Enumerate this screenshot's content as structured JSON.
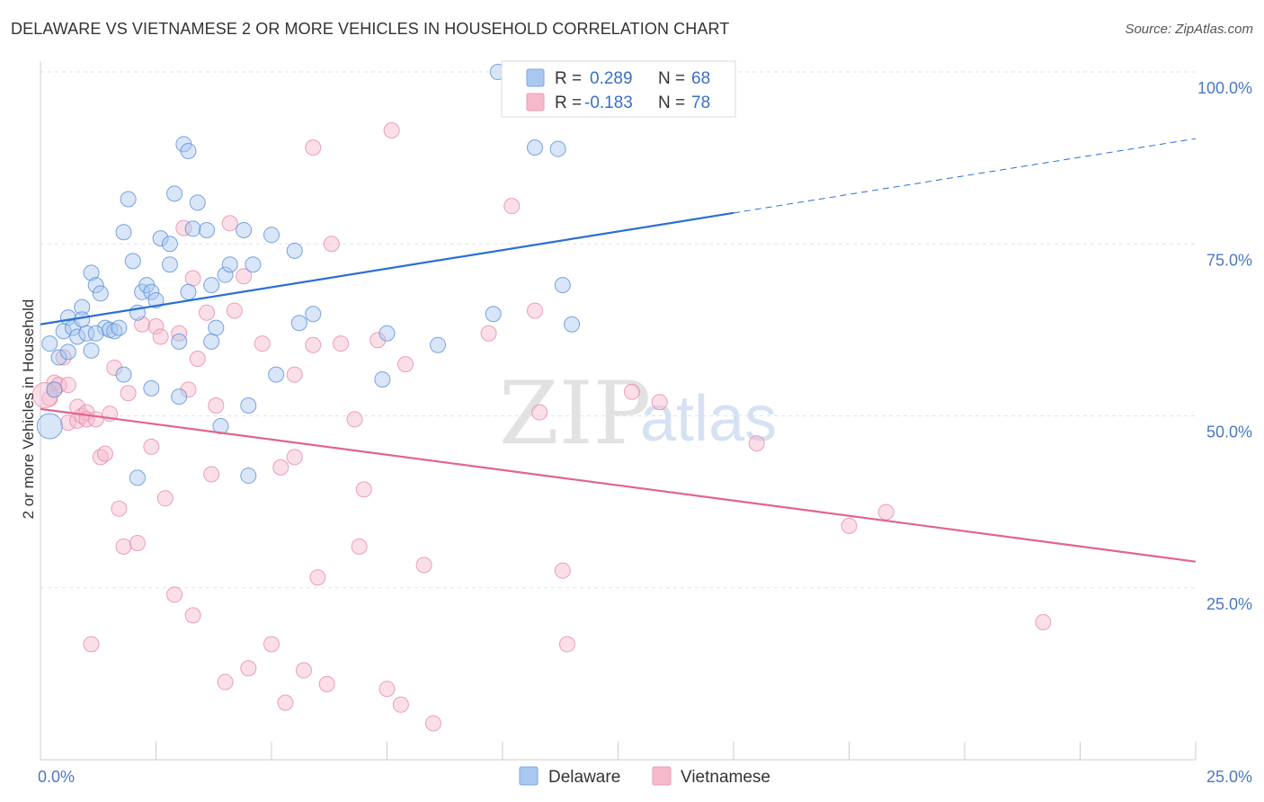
{
  "header": {
    "title": "DELAWARE VS VIETNAMESE 2 OR MORE VEHICLES IN HOUSEHOLD CORRELATION CHART",
    "source": "Source: ZipAtlas.com"
  },
  "watermark": {
    "zip": "ZIP",
    "atlas": "atlas"
  },
  "legend": {
    "r_label": "R =",
    "n_label": "N =",
    "entries": [
      {
        "r": "0.289",
        "n": "68",
        "color": "#a9c8f0"
      },
      {
        "r": "-0.183",
        "n": "78",
        "color": "#f6b9cc"
      }
    ]
  },
  "colors": {
    "delaware": "#5b8fd8",
    "vietnamese": "#e88aa8",
    "delaware_line": "#2a6fd0",
    "vietnamese_line": "#e0648f",
    "tick": "#4a78c4"
  },
  "chart_data": {
    "type": "scatter",
    "xlabel": "",
    "ylabel": "2 or more Vehicles in Household",
    "xlim": [
      0,
      25
    ],
    "ylim": [
      0,
      100
    ],
    "x_tick_labels": [
      "0.0%",
      "25.0%"
    ],
    "y_tick_labels": [
      "100.0%",
      "75.0%",
      "50.0%",
      "25.0%"
    ],
    "y_tick_values": [
      100,
      75,
      50,
      25
    ],
    "legend_placement": "top-center",
    "grid": true,
    "series": [
      {
        "name": "Delaware",
        "trend": {
          "x0": 0,
          "y0": 63.3,
          "x1": 15.0,
          "y1": 79.5,
          "dash_to_x": 25.0,
          "dash_to_y": 90.3
        },
        "points": [
          [
            9.9,
            100.0
          ],
          [
            0.2,
            60.5
          ],
          [
            0.4,
            58.5
          ],
          [
            0.5,
            62.3
          ],
          [
            0.6,
            64.3
          ],
          [
            0.6,
            59.3
          ],
          [
            0.7,
            62.8
          ],
          [
            0.8,
            61.5
          ],
          [
            0.9,
            65.8
          ],
          [
            0.9,
            64.0
          ],
          [
            1.0,
            62.0
          ],
          [
            1.1,
            59.5
          ],
          [
            1.1,
            70.8
          ],
          [
            1.2,
            69.0
          ],
          [
            1.3,
            67.8
          ],
          [
            1.4,
            62.8
          ],
          [
            1.2,
            62.0
          ],
          [
            1.5,
            62.5
          ],
          [
            1.6,
            62.3
          ],
          [
            1.7,
            62.8
          ],
          [
            1.8,
            76.7
          ],
          [
            1.9,
            81.5
          ],
          [
            2.0,
            72.5
          ],
          [
            2.1,
            65.0
          ],
          [
            2.2,
            68.0
          ],
          [
            2.3,
            69.0
          ],
          [
            2.4,
            68.0
          ],
          [
            2.5,
            66.8
          ],
          [
            2.6,
            75.8
          ],
          [
            2.8,
            75.0
          ],
          [
            2.8,
            72.0
          ],
          [
            2.9,
            82.3
          ],
          [
            3.1,
            89.5
          ],
          [
            3.2,
            88.5
          ],
          [
            3.3,
            77.2
          ],
          [
            3.4,
            81.0
          ],
          [
            3.6,
            77.0
          ],
          [
            3.7,
            69.0
          ],
          [
            3.8,
            62.8
          ],
          [
            3.9,
            48.5
          ],
          [
            4.0,
            70.5
          ],
          [
            4.1,
            72.0
          ],
          [
            4.4,
            77.0
          ],
          [
            4.5,
            51.5
          ],
          [
            4.5,
            41.3
          ],
          [
            3.0,
            52.8
          ],
          [
            3.0,
            60.8
          ],
          [
            2.4,
            54.0
          ],
          [
            1.8,
            56.0
          ],
          [
            2.1,
            41.0
          ],
          [
            3.2,
            68.0
          ],
          [
            4.6,
            72.0
          ],
          [
            5.0,
            76.3
          ],
          [
            5.1,
            56.0
          ],
          [
            5.5,
            74.0
          ],
          [
            5.9,
            64.8
          ],
          [
            5.6,
            63.5
          ],
          [
            7.5,
            62.0
          ],
          [
            7.4,
            55.3
          ],
          [
            8.6,
            60.3
          ],
          [
            9.8,
            64.8
          ],
          [
            10.7,
            89.0
          ],
          [
            11.2,
            88.8
          ],
          [
            11.3,
            69.0
          ],
          [
            11.5,
            63.3
          ],
          [
            3.7,
            60.8
          ],
          [
            0.2,
            48.5
          ],
          [
            0.3,
            53.8
          ]
        ]
      },
      {
        "name": "Vietnamese",
        "trend": {
          "x0": 0,
          "y0": 51.0,
          "x1": 25.0,
          "y1": 28.8
        },
        "points": [
          [
            0.2,
            52.5
          ],
          [
            0.3,
            54.8
          ],
          [
            0.3,
            53.8
          ],
          [
            0.4,
            54.5
          ],
          [
            0.5,
            58.5
          ],
          [
            0.6,
            54.5
          ],
          [
            0.6,
            49.0
          ],
          [
            0.8,
            49.3
          ],
          [
            0.8,
            51.3
          ],
          [
            0.9,
            50.0
          ],
          [
            1.0,
            50.5
          ],
          [
            1.0,
            49.5
          ],
          [
            1.1,
            16.8
          ],
          [
            1.2,
            49.5
          ],
          [
            1.3,
            44.0
          ],
          [
            1.4,
            44.5
          ],
          [
            1.5,
            50.3
          ],
          [
            1.6,
            57.0
          ],
          [
            1.7,
            36.5
          ],
          [
            1.8,
            31.0
          ],
          [
            1.9,
            53.3
          ],
          [
            2.1,
            31.5
          ],
          [
            2.2,
            63.3
          ],
          [
            2.4,
            45.5
          ],
          [
            2.5,
            63.0
          ],
          [
            2.6,
            61.5
          ],
          [
            2.7,
            38.0
          ],
          [
            2.9,
            24.0
          ],
          [
            3.0,
            62.0
          ],
          [
            3.1,
            77.3
          ],
          [
            3.2,
            53.8
          ],
          [
            3.3,
            70.0
          ],
          [
            3.3,
            21.0
          ],
          [
            3.4,
            58.3
          ],
          [
            3.6,
            65.0
          ],
          [
            3.7,
            41.5
          ],
          [
            3.8,
            51.5
          ],
          [
            4.0,
            11.3
          ],
          [
            4.1,
            78.0
          ],
          [
            4.2,
            65.3
          ],
          [
            4.4,
            70.3
          ],
          [
            4.5,
            13.3
          ],
          [
            4.8,
            60.5
          ],
          [
            5.0,
            16.8
          ],
          [
            5.2,
            42.5
          ],
          [
            5.3,
            8.3
          ],
          [
            5.5,
            44.0
          ],
          [
            5.5,
            56.0
          ],
          [
            5.7,
            13.0
          ],
          [
            5.9,
            60.3
          ],
          [
            5.9,
            89.0
          ],
          [
            6.0,
            26.5
          ],
          [
            6.2,
            11.0
          ],
          [
            6.3,
            75.0
          ],
          [
            6.5,
            60.5
          ],
          [
            6.8,
            49.5
          ],
          [
            6.9,
            31.0
          ],
          [
            7.0,
            39.3
          ],
          [
            7.3,
            61.0
          ],
          [
            7.5,
            10.3
          ],
          [
            7.6,
            91.5
          ],
          [
            7.8,
            8.0
          ],
          [
            7.9,
            57.5
          ],
          [
            8.3,
            28.3
          ],
          [
            8.5,
            5.3
          ],
          [
            9.7,
            62.0
          ],
          [
            10.2,
            80.5
          ],
          [
            10.7,
            65.3
          ],
          [
            10.8,
            50.5
          ],
          [
            11.3,
            27.5
          ],
          [
            11.4,
            16.8
          ],
          [
            12.8,
            53.5
          ],
          [
            13.4,
            52.0
          ],
          [
            15.5,
            46.0
          ],
          [
            17.5,
            34.0
          ],
          [
            18.3,
            36.0
          ],
          [
            21.7,
            20.0
          ],
          [
            0.1,
            53.0
          ]
        ]
      }
    ]
  },
  "bottom_legend": [
    {
      "label": "Delaware",
      "color": "#a9c8f0"
    },
    {
      "label": "Vietnamese",
      "color": "#f6b9cc"
    }
  ]
}
